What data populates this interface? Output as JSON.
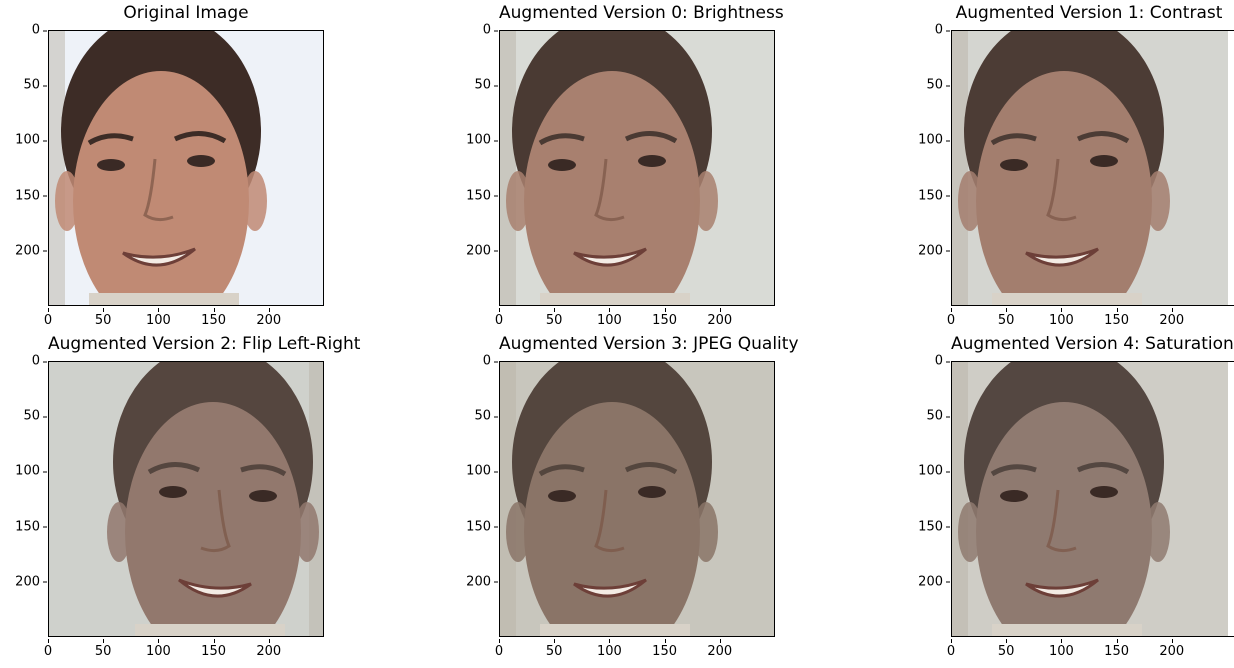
{
  "panels": [
    {
      "title": "Original Image",
      "variant": "original"
    },
    {
      "title": "Augmented Version 0: Brightness",
      "variant": "brightness"
    },
    {
      "title": "Augmented Version 1: Contrast",
      "variant": "contrast"
    },
    {
      "title": "Augmented Version 2: Flip Left-Right",
      "variant": "flip"
    },
    {
      "title": "Augmented Version 3: JPEG Quality",
      "variant": "jpeg"
    },
    {
      "title": "Augmented Version 4: Saturation",
      "variant": "saturation"
    }
  ],
  "yticks": [
    "0",
    "50",
    "100",
    "150",
    "200"
  ],
  "xticks": [
    "0",
    "50",
    "100",
    "150",
    "200"
  ],
  "colors": {
    "original": {
      "bg": "#eef2f8",
      "skin": "#c08a74",
      "hair": "#3d2c26"
    },
    "brightness": {
      "bg": "#d9dbd6",
      "skin": "#a8806f",
      "hair": "#4a3a33"
    },
    "contrast": {
      "bg": "#d4d5d0",
      "skin": "#a37e6e",
      "hair": "#4c3c35"
    },
    "flip": {
      "bg": "#cfd1cc",
      "skin": "#92786d",
      "hair": "#55463f"
    },
    "jpeg": {
      "bg": "#c8c6bd",
      "skin": "#8a7467",
      "hair": "#54463e"
    },
    "saturation": {
      "bg": "#cfcdc6",
      "skin": "#8f7a70",
      "hair": "#544741"
    }
  }
}
